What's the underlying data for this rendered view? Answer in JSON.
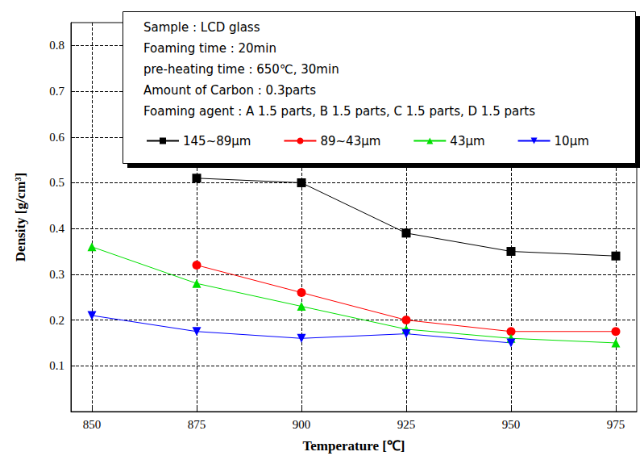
{
  "chart_data": {
    "type": "line",
    "x_label": "Temperature [℃]",
    "y_label": "Density [g/cm³]",
    "annotations": [
      "Sample : LCD glass",
      "Foaming time : 20min",
      "pre-heating time : 650℃, 30min",
      "Amount of Carbon : 0.3parts",
      "Foaming agent : A 1.5 parts, B 1.5 parts, C 1.5 parts, D 1.5 parts"
    ],
    "x": [
      850,
      875,
      900,
      925,
      950,
      975
    ],
    "series": [
      {
        "name": "145~89μm",
        "color": "#000000",
        "marker": "square",
        "values": [
          null,
          0.51,
          0.5,
          0.39,
          0.35,
          0.34
        ]
      },
      {
        "name": "89~43μm",
        "color": "#ff0000",
        "marker": "circle",
        "values": [
          null,
          0.32,
          0.26,
          0.2,
          0.175,
          0.175
        ]
      },
      {
        "name": "43μm",
        "color": "#00e000",
        "marker": "triangle-up",
        "values": [
          0.36,
          0.28,
          0.23,
          0.18,
          0.16,
          0.15
        ]
      },
      {
        "name": "10μm",
        "color": "#0000ff",
        "marker": "triangle-down",
        "values": [
          0.21,
          0.175,
          0.16,
          0.17,
          0.15,
          null
        ]
      }
    ],
    "xlim": [
      845,
      980
    ],
    "xticks": [
      850,
      875,
      900,
      925,
      950,
      975
    ],
    "ylim": [
      0,
      0.85
    ],
    "yticks": [
      0.1,
      0.2,
      0.3,
      0.4,
      0.5,
      0.6,
      0.7,
      0.8
    ],
    "grid": true
  }
}
